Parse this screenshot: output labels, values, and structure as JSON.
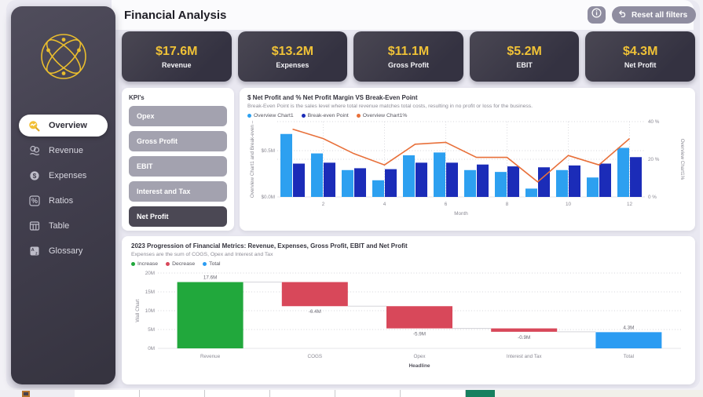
{
  "header": {
    "title": "Financial Analysis",
    "reset_label": "Reset all filters"
  },
  "sidebar": {
    "items": [
      {
        "label": "Overview",
        "active": true
      },
      {
        "label": "Revenue",
        "active": false
      },
      {
        "label": "Expenses",
        "active": false
      },
      {
        "label": "Ratios",
        "active": false
      },
      {
        "label": "Table",
        "active": false
      },
      {
        "label": "Glossary",
        "active": false
      }
    ]
  },
  "cards": [
    {
      "value": "$17.6M",
      "label": "Revenue"
    },
    {
      "value": "$13.2M",
      "label": "Expenses"
    },
    {
      "value": "$11.1M",
      "label": "Gross Profit"
    },
    {
      "value": "$5.2M",
      "label": "EBIT"
    },
    {
      "value": "$4.3M",
      "label": "Net Profit"
    }
  ],
  "kpi_panel": {
    "title": "KPI's",
    "options": [
      {
        "label": "Opex",
        "selected": false
      },
      {
        "label": "Gross Profit",
        "selected": false
      },
      {
        "label": "EBIT",
        "selected": false
      },
      {
        "label": "Interest and Tax",
        "selected": false
      },
      {
        "label": "Net Profit",
        "selected": true
      }
    ]
  },
  "chart_data": [
    {
      "type": "bar-line-combo",
      "title": "$ Net Profit and % Net Profit Margin VS Break-Even Point",
      "subtitle": "Break-Even Point is the sales level where total revenue matches total costs, resulting in no profit or loss for the business.",
      "legend": [
        {
          "name": "Overview Chart1",
          "color": "#2da0f0"
        },
        {
          "name": "Break-even Point",
          "color": "#1b2cb8"
        },
        {
          "name": "Overview Chart1%",
          "color": "#e8703a"
        }
      ],
      "x": [
        1,
        2,
        3,
        4,
        5,
        6,
        7,
        8,
        9,
        10,
        11,
        12
      ],
      "x_ticks": [
        "2",
        "4",
        "6",
        "8",
        "10",
        "12"
      ],
      "xlabel": "Month",
      "ylabel_left": "Overview Chart1 and Break-even –",
      "ylabel_right": "Overview Chart1%",
      "y_left_ticks": [
        {
          "v": 0,
          "label": "$0.0M"
        },
        {
          "v": 0.5,
          "label": "$0.5M"
        }
      ],
      "y_right_ticks": [
        {
          "v": 0,
          "label": "0 %"
        },
        {
          "v": 20,
          "label": "20 %"
        },
        {
          "v": 40,
          "label": "40 %"
        }
      ],
      "ylim_left": [
        0,
        0.8
      ],
      "ylim_right": [
        0,
        40
      ],
      "series": [
        {
          "name": "Overview Chart1",
          "type": "bar",
          "color": "#2da0f0",
          "values": [
            0.68,
            0.47,
            0.29,
            0.18,
            0.45,
            0.48,
            0.29,
            0.27,
            0.09,
            0.29,
            0.21,
            0.53
          ]
        },
        {
          "name": "Break-even Point",
          "type": "bar",
          "color": "#1b2cb8",
          "values": [
            0.36,
            0.37,
            0.31,
            0.3,
            0.37,
            0.37,
            0.35,
            0.33,
            0.32,
            0.34,
            0.36,
            0.43
          ]
        },
        {
          "name": "Overview Chart1%",
          "type": "line",
          "color": "#e8703a",
          "values": [
            36,
            31,
            23,
            17,
            28,
            29,
            21,
            21,
            8,
            22,
            17,
            31
          ]
        }
      ]
    },
    {
      "type": "waterfall",
      "title": "2023 Progression of Financial Metrics: Revenue, Expenses, Gross Profit, EBIT and Net Profit",
      "subtitle": "Expenses are the sum of COGS, Opex and Interest and Tax",
      "legend": [
        {
          "name": "Increase",
          "color": "#21a83c"
        },
        {
          "name": "Decrease",
          "color": "#d8485a"
        },
        {
          "name": "Total",
          "color": "#2b9cf2"
        }
      ],
      "xlabel": "Headline",
      "ylabel": "Wall Chart",
      "y_ticks": [
        {
          "v": 0,
          "label": "0M"
        },
        {
          "v": 5,
          "label": "5M"
        },
        {
          "v": 10,
          "label": "10M"
        },
        {
          "v": 15,
          "label": "15M"
        },
        {
          "v": 20,
          "label": "20M"
        }
      ],
      "ylim": [
        0,
        20
      ],
      "steps": [
        {
          "label": "Revenue",
          "delta": 17.6,
          "display": "17.6M",
          "kind": "increase"
        },
        {
          "label": "COGS",
          "delta": -6.4,
          "display": "-6.4M",
          "kind": "decrease"
        },
        {
          "label": "Opex",
          "delta": -5.9,
          "display": "-5.9M",
          "kind": "decrease"
        },
        {
          "label": "Interest and Tax",
          "delta": -0.9,
          "display": "-0.9M",
          "kind": "decrease"
        },
        {
          "label": "Total",
          "delta": 4.3,
          "display": "4.3M",
          "kind": "total"
        }
      ]
    }
  ],
  "colors": {
    "accent_yellow": "#f0c237",
    "card_bg": "#3b3947",
    "sidebar_bg": "#44414f",
    "button_gray": "#a3a2af",
    "button_dark": "#4b4854",
    "sheet_green": "#17805f"
  }
}
